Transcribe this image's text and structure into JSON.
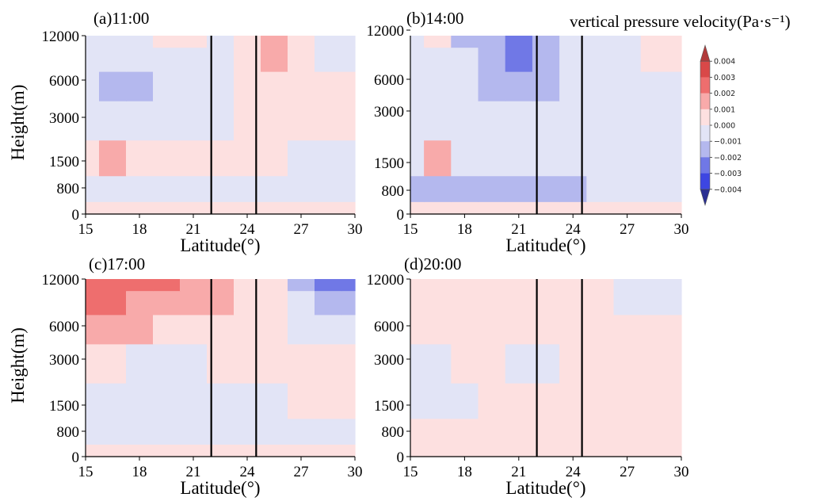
{
  "figure_title": "vertical pressure velocity(Pa·s⁻¹)",
  "colorbar": {
    "ticks": [
      "0.004",
      "0.003",
      "0.002",
      "0.001",
      "0.000",
      "−0.001",
      "−0.002",
      "−0.003",
      "−0.004"
    ],
    "colors": [
      "#b13a3a",
      "#d94848",
      "#ee6e6e",
      "#f8aaaa",
      "#fde0e0",
      "#e2e4f6",
      "#b4b8ee",
      "#7078e6",
      "#3d46e2",
      "#2a2f92"
    ]
  },
  "chart_data": [
    {
      "type": "heatmap",
      "title": "(a)11:00",
      "xlabel": "Latitude(°)",
      "ylabel": "Height(m)",
      "xticks": [
        "15",
        "18",
        "21",
        "24",
        "27",
        "30"
      ],
      "yticks": [
        "0",
        "800",
        "1500",
        "3000",
        "6000",
        "12000"
      ],
      "xlim": [
        15,
        30
      ],
      "reference_lines_x": [
        22,
        24.5
      ],
      "grid_levels": [
        "0",
        "800",
        "1500",
        "3000",
        "6000",
        "9000",
        "12000"
      ],
      "grid_latitudes": [
        15,
        16.5,
        18,
        19.5,
        21,
        22.5,
        24,
        25.5,
        27,
        28.5,
        30
      ],
      "values": [
        [
          0.0005,
          0.0005,
          0.0003,
          0.0003,
          0.0003,
          0.0003,
          0.0003,
          0.0003,
          0.0003,
          0.0003,
          0.0003
        ],
        [
          -0.0005,
          -0.0005,
          -0.0003,
          -0.0003,
          -0.0003,
          -0.0003,
          -0.0003,
          -0.0003,
          -0.0003,
          -0.0003,
          -0.0003
        ],
        [
          0.0003,
          0.0012,
          0.0008,
          0.0006,
          0.0004,
          0.0003,
          0.0003,
          0.0002,
          -0.0003,
          -0.0003,
          -0.0003
        ],
        [
          -0.0008,
          -0.0008,
          -0.0008,
          -0.0005,
          -0.0003,
          -0.0004,
          0.0003,
          0.0004,
          0.0003,
          0.0003,
          0.0003
        ],
        [
          -0.0008,
          -0.0013,
          -0.0012,
          -0.0006,
          -0.0003,
          -0.0003,
          0.0005,
          0.0007,
          0.0003,
          0.0002,
          0.0002
        ],
        [
          -0.0006,
          -0.0008,
          -0.0006,
          -0.0004,
          -0.0002,
          -0.0002,
          0.0008,
          0.0012,
          0.0006,
          -0.0004,
          -0.0004
        ],
        [
          -0.0003,
          -0.0004,
          -0.0003,
          0.0003,
          0.0003,
          -0.0002,
          0.0007,
          0.0011,
          0.0004,
          -0.0006,
          -0.0005
        ]
      ]
    },
    {
      "type": "heatmap",
      "title": "(b)14:00",
      "xlabel": "Latitude(°)",
      "ylabel": "",
      "xticks": [
        "15",
        "18",
        "21",
        "24",
        "27",
        "30"
      ],
      "yticks": [
        "0",
        "800",
        "1500",
        "3000",
        "6000",
        "12000"
      ],
      "xlim": [
        15,
        30
      ],
      "reference_lines_x": [
        22,
        24.5
      ],
      "grid_levels": [
        "0",
        "800",
        "1500",
        "3000",
        "6000",
        "9000",
        "12000"
      ],
      "grid_latitudes": [
        15,
        16.5,
        18,
        19.5,
        21,
        22.5,
        24,
        25.5,
        27,
        28.5,
        30
      ],
      "values": [
        [
          0.0005,
          0.0005,
          0.0003,
          0.0003,
          0.0003,
          0.0003,
          0.0003,
          0.0003,
          0.0003,
          0.0005,
          0.0005
        ],
        [
          -0.0012,
          -0.0014,
          -0.0013,
          -0.0011,
          -0.0011,
          -0.0011,
          -0.0011,
          -0.001,
          -0.0008,
          -0.0007,
          -0.0007
        ],
        [
          -0.0004,
          0.0012,
          -0.0003,
          -0.0003,
          -0.0003,
          -0.0003,
          -0.0003,
          -0.0004,
          -0.0008,
          -0.0008,
          -0.0008
        ],
        [
          -0.0006,
          -0.0003,
          -0.0005,
          -0.0007,
          -0.0008,
          -0.0008,
          -0.0008,
          -0.0008,
          -0.0007,
          -0.0006,
          -0.0005
        ],
        [
          -0.0007,
          -0.0004,
          -0.0008,
          -0.0013,
          -0.0014,
          -0.0011,
          -0.001,
          -0.0007,
          -0.0005,
          -0.0003,
          -0.0003
        ],
        [
          -0.0008,
          -0.0004,
          -0.001,
          -0.0016,
          -0.0021,
          -0.0013,
          -0.001,
          -0.0006,
          -0.0004,
          0.0006,
          0.0008
        ],
        [
          -0.0008,
          0.0006,
          -0.0012,
          -0.0017,
          -0.0021,
          -0.0013,
          -0.001,
          -0.0005,
          -0.0003,
          0.0008,
          0.0009
        ]
      ]
    },
    {
      "type": "heatmap",
      "title": "(c)17:00",
      "xlabel": "Latitude(°)",
      "ylabel": "Height(m)",
      "xticks": [
        "15",
        "18",
        "21",
        "24",
        "27",
        "30"
      ],
      "yticks": [
        "0",
        "800",
        "1500",
        "3000",
        "6000",
        "12000"
      ],
      "xlim": [
        15,
        30
      ],
      "reference_lines_x": [
        22,
        24.5
      ],
      "grid_levels": [
        "0",
        "800",
        "1500",
        "3000",
        "6000",
        "9000",
        "12000"
      ],
      "grid_latitudes": [
        15,
        16.5,
        18,
        19.5,
        21,
        22.5,
        24,
        25.5,
        27,
        28.5,
        30
      ],
      "values": [
        [
          0.0005,
          0.0005,
          0.0005,
          0.0005,
          0.0005,
          0.0005,
          0.0005,
          0.0005,
          0.0004,
          0.0003,
          0.0003
        ],
        [
          -0.0006,
          -0.0008,
          -0.0008,
          -0.0006,
          -0.0006,
          -0.0007,
          -0.0008,
          -0.0008,
          -0.0006,
          -0.0003,
          -0.0003
        ],
        [
          -0.0003,
          -0.0004,
          -0.0003,
          -0.0003,
          -0.0003,
          -0.0004,
          -0.0003,
          -0.0003,
          0.0002,
          0.0003,
          0.0003
        ],
        [
          0.0004,
          0.0002,
          -0.0003,
          -0.0008,
          -0.0004,
          0.0002,
          0.0003,
          0.0003,
          0.0003,
          0.0003,
          0.0003
        ],
        [
          0.0018,
          0.0014,
          0.001,
          0.0008,
          0.0009,
          0.0006,
          0.0004,
          0.0003,
          -0.0004,
          -0.0008,
          -0.0007
        ],
        [
          0.0026,
          0.0023,
          0.0018,
          0.0015,
          0.0014,
          0.001,
          0.0005,
          0.0003,
          -0.0008,
          -0.0018,
          -0.0016
        ],
        [
          0.0026,
          0.0026,
          0.0026,
          0.0022,
          0.0018,
          0.0012,
          0.0005,
          0.0002,
          -0.0012,
          -0.0026,
          -0.0024
        ]
      ]
    },
    {
      "type": "heatmap",
      "title": "(d)20:00",
      "xlabel": "Latitude(°)",
      "ylabel": "",
      "xticks": [
        "15",
        "18",
        "21",
        "24",
        "27",
        "30"
      ],
      "yticks": [
        "0",
        "800",
        "1500",
        "3000",
        "6000",
        "12000"
      ],
      "xlim": [
        15,
        30
      ],
      "reference_lines_x": [
        22,
        24.5
      ],
      "grid_levels": [
        "0",
        "800",
        "1500",
        "3000",
        "6000",
        "9000",
        "12000"
      ],
      "grid_latitudes": [
        15,
        16.5,
        18,
        19.5,
        21,
        22.5,
        24,
        25.5,
        27,
        28.5,
        30
      ],
      "values": [
        [
          0.0004,
          0.0004,
          0.0004,
          0.0004,
          0.0004,
          0.0004,
          0.0004,
          0.0004,
          0.0004,
          0.0004,
          0.0004
        ],
        [
          0.0003,
          0.0003,
          0.0003,
          0.0003,
          0.0003,
          0.0003,
          0.0003,
          0.0003,
          0.0003,
          0.0003,
          0.0003
        ],
        [
          -0.0005,
          -0.0008,
          -0.0003,
          0.0003,
          0.0003,
          0.0003,
          0.0003,
          0.0002,
          0.0002,
          0.0003,
          0.0003
        ],
        [
          -0.0003,
          -0.0003,
          0.0003,
          0.0003,
          -0.0003,
          -0.0003,
          0.0003,
          0.0003,
          0.0003,
          0.0004,
          0.0008
        ],
        [
          0.0003,
          0.0004,
          0.0004,
          0.0004,
          0.0003,
          0.0003,
          0.0003,
          0.0003,
          0.0003,
          0.0005,
          0.0005
        ],
        [
          0.0005,
          0.0006,
          0.0008,
          0.0009,
          0.0008,
          0.0004,
          0.0003,
          0.0002,
          -0.0004,
          -0.0006,
          -0.0003
        ],
        [
          0.0003,
          0.0006,
          0.0008,
          0.0009,
          0.0008,
          0.0004,
          0.0003,
          0.0002,
          -0.0004,
          -0.0005,
          -0.0003
        ]
      ]
    }
  ]
}
